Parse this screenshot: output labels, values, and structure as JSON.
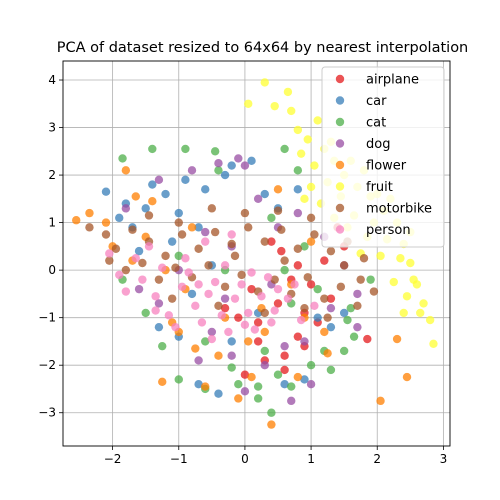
{
  "chart_data": {
    "type": "scatter",
    "title": "PCA of dataset resized to 64x64 by nearest interpolation",
    "xlabel": "",
    "ylabel": "",
    "xlim": [
      -2.75,
      3.1
    ],
    "ylim": [
      -3.7,
      4.4
    ],
    "xticks": [
      -2,
      -1,
      0,
      1,
      2,
      3
    ],
    "yticks": [
      -3,
      -2,
      -1,
      0,
      1,
      2,
      3,
      4
    ],
    "xtick_labels": [
      "−2",
      "−1",
      "0",
      "1",
      "2",
      "3"
    ],
    "ytick_labels": [
      "−3",
      "−2",
      "−1",
      "0",
      "1",
      "2",
      "3",
      "4"
    ],
    "grid": true,
    "legend_position": "top-right",
    "point_alpha": 0.75,
    "series": [
      {
        "name": "airplane",
        "color": "#e41a1c",
        "values": [
          [
            0.2,
            -1.1
          ],
          [
            0.5,
            -0.7
          ],
          [
            0.8,
            -1.4
          ],
          [
            0.3,
            -1.9
          ],
          [
            0.9,
            -0.9
          ],
          [
            1.2,
            0.2
          ],
          [
            1.5,
            0.5
          ],
          [
            0.0,
            -2.2
          ],
          [
            0.6,
            -1.8
          ],
          [
            1.85,
            -1.45
          ],
          [
            0.1,
            -0.4
          ],
          [
            0.7,
            -0.2
          ],
          [
            1.0,
            -0.3
          ],
          [
            0.4,
            0.6
          ],
          [
            1.3,
            -0.6
          ],
          [
            0.2,
            -1.5
          ],
          [
            -0.1,
            -1.0
          ],
          [
            0.9,
            -1.6
          ],
          [
            0.55,
            0.4
          ],
          [
            1.4,
            0.9
          ],
          [
            -0.3,
            -0.8
          ],
          [
            0.8,
            0.1
          ],
          [
            1.1,
            -1.1
          ],
          [
            0.6,
            -2.1
          ]
        ]
      },
      {
        "name": "car",
        "color": "#377eb8",
        "values": [
          [
            -2.1,
            1.65
          ],
          [
            -1.9,
            1.1
          ],
          [
            -1.5,
            1.3
          ],
          [
            -1.2,
            1.6
          ],
          [
            -0.9,
            1.9
          ],
          [
            -0.6,
            1.7
          ],
          [
            -0.2,
            2.2
          ],
          [
            0.1,
            2.3
          ],
          [
            -1.0,
            1.2
          ],
          [
            -0.7,
            0.9
          ],
          [
            -1.6,
            0.4
          ],
          [
            -1.3,
            -1.2
          ],
          [
            -1.0,
            -1.4
          ],
          [
            -0.7,
            -2.4
          ],
          [
            -0.4,
            -2.6
          ],
          [
            0.6,
            -2.4
          ],
          [
            0.9,
            -2.3
          ],
          [
            -0.2,
            -1.5
          ],
          [
            0.3,
            1.6
          ],
          [
            0.8,
            1.7
          ],
          [
            1.1,
            -1.0
          ],
          [
            1.5,
            -0.9
          ],
          [
            -1.8,
            1.4
          ],
          [
            -1.4,
            1.8
          ],
          [
            -0.5,
            0.1
          ],
          [
            -0.8,
            -0.5
          ],
          [
            0.2,
            -0.9
          ],
          [
            -1.1,
            0.6
          ],
          [
            0.5,
            1.3
          ],
          [
            1.3,
            -1.2
          ],
          [
            -0.3,
            2.0
          ],
          [
            -1.7,
            0.9
          ]
        ]
      },
      {
        "name": "cat",
        "color": "#4daf4a",
        "values": [
          [
            -1.85,
            2.35
          ],
          [
            -1.4,
            2.55
          ],
          [
            -0.9,
            2.55
          ],
          [
            -0.45,
            2.5
          ],
          [
            0.6,
            2.55
          ],
          [
            -0.6,
            -2.5
          ],
          [
            -0.1,
            -2.4
          ],
          [
            0.2,
            -2.45
          ],
          [
            0.5,
            -2.2
          ],
          [
            0.7,
            -2.45
          ],
          [
            -1.25,
            -1.6
          ],
          [
            -1.0,
            -2.3
          ],
          [
            0.4,
            -3.0
          ],
          [
            1.3,
            -2.1
          ],
          [
            1.5,
            -1.7
          ],
          [
            1.55,
            -1.05
          ],
          [
            1.65,
            -1.4
          ],
          [
            0.8,
            2.1
          ],
          [
            1.0,
            -2.0
          ],
          [
            0.3,
            -1.7
          ],
          [
            -0.6,
            -1.5
          ],
          [
            -0.3,
            0.0
          ],
          [
            0.6,
            0.0
          ],
          [
            1.1,
            -0.4
          ],
          [
            -1.0,
            0.3
          ],
          [
            0.4,
            1.1
          ],
          [
            0.9,
            0.5
          ],
          [
            -1.5,
            -0.9
          ],
          [
            1.6,
            -0.8
          ],
          [
            -0.2,
            -2.05
          ],
          [
            0.7,
            -0.7
          ],
          [
            1.9,
            -0.2
          ],
          [
            -1.85,
            -0.2
          ],
          [
            0.2,
            -2.7
          ],
          [
            -0.4,
            2.1
          ],
          [
            1.2,
            -1.7
          ]
        ]
      },
      {
        "name": "dog",
        "color": "#984ea3",
        "values": [
          [
            -0.4,
            2.25
          ],
          [
            -0.1,
            2.35
          ],
          [
            0.0,
            2.2
          ],
          [
            -0.8,
            2.1
          ],
          [
            -1.3,
            1.9
          ],
          [
            0.7,
            -2.75
          ],
          [
            0.3,
            -2.0
          ],
          [
            -0.2,
            -1.8
          ],
          [
            -0.5,
            -1.3
          ],
          [
            0.6,
            -1.6
          ],
          [
            0.9,
            -1.5
          ],
          [
            1.3,
            -0.8
          ],
          [
            1.7,
            -0.5
          ],
          [
            1.7,
            -1.2
          ],
          [
            1.2,
            0.7
          ],
          [
            0.8,
            1.2
          ],
          [
            -0.6,
            0.8
          ],
          [
            -1.0,
            0.0
          ],
          [
            -1.3,
            -0.7
          ],
          [
            -0.3,
            -0.6
          ],
          [
            0.4,
            -0.3
          ],
          [
            -0.2,
            0.5
          ],
          [
            0.2,
            1.5
          ],
          [
            -1.6,
            -0.4
          ],
          [
            0.0,
            -2.55
          ],
          [
            1.0,
            -2.4
          ],
          [
            -0.7,
            -1.9
          ],
          [
            0.5,
            0.9
          ],
          [
            -1.8,
            1.3
          ],
          [
            1.5,
            0.1
          ]
        ]
      },
      {
        "name": "flower",
        "color": "#ff7f00",
        "values": [
          [
            -2.55,
            1.05
          ],
          [
            -2.35,
            1.2
          ],
          [
            -1.8,
            2.1
          ],
          [
            -1.65,
            1.55
          ],
          [
            -1.4,
            1.45
          ],
          [
            -1.2,
            0.0
          ],
          [
            -1.0,
            -1.3
          ],
          [
            -0.75,
            -1.65
          ],
          [
            -0.6,
            -2.45
          ],
          [
            -0.1,
            -2.7
          ],
          [
            0.1,
            -2.25
          ],
          [
            0.4,
            -3.25
          ],
          [
            0.8,
            -2.25
          ],
          [
            -1.25,
            -2.35
          ],
          [
            2.05,
            -2.75
          ],
          [
            2.45,
            -2.25
          ],
          [
            2.3,
            -1.45
          ],
          [
            1.25,
            -1.75
          ],
          [
            1.2,
            -1.3
          ],
          [
            0.05,
            -1.5
          ],
          [
            0.25,
            -0.8
          ],
          [
            -0.3,
            -1.0
          ],
          [
            -0.8,
            0.9
          ],
          [
            -2.0,
            0.5
          ],
          [
            -1.5,
            0.7
          ],
          [
            0.7,
            -0.3
          ],
          [
            1.0,
            0.6
          ],
          [
            -0.9,
            -0.4
          ],
          [
            0.5,
            1.7
          ],
          [
            -2.1,
            1.0
          ],
          [
            -0.4,
            -1.8
          ],
          [
            0.9,
            -1.0
          ],
          [
            -1.7,
            0.2
          ],
          [
            -1.1,
            -1.1
          ],
          [
            0.3,
            -1.3
          ]
        ]
      },
      {
        "name": "fruit",
        "color": "#ffff33",
        "values": [
          [
            0.05,
            3.5
          ],
          [
            0.3,
            3.95
          ],
          [
            0.45,
            3.45
          ],
          [
            0.65,
            3.75
          ],
          [
            0.7,
            3.35
          ],
          [
            0.8,
            2.95
          ],
          [
            0.95,
            2.75
          ],
          [
            1.1,
            3.15
          ],
          [
            1.2,
            2.55
          ],
          [
            1.35,
            2.3
          ],
          [
            1.5,
            2.0
          ],
          [
            1.7,
            1.75
          ],
          [
            1.9,
            1.55
          ],
          [
            2.1,
            1.25
          ],
          [
            2.3,
            1.0
          ],
          [
            2.4,
            0.55
          ],
          [
            2.5,
            0.15
          ],
          [
            2.6,
            -0.3
          ],
          [
            2.7,
            -0.7
          ],
          [
            2.8,
            -1.05
          ],
          [
            2.85,
            -1.55
          ],
          [
            2.65,
            -0.9
          ],
          [
            2.45,
            -0.55
          ],
          [
            2.25,
            -0.25
          ],
          [
            2.05,
            0.3
          ],
          [
            1.85,
            0.7
          ],
          [
            1.65,
            1.15
          ],
          [
            1.45,
            1.55
          ],
          [
            1.25,
            1.85
          ],
          [
            1.05,
            2.2
          ],
          [
            0.85,
            2.45
          ],
          [
            1.15,
            1.4
          ],
          [
            1.55,
            0.9
          ],
          [
            1.95,
            1.0
          ],
          [
            2.15,
            0.65
          ],
          [
            2.35,
            0.25
          ],
          [
            1.75,
            0.35
          ],
          [
            1.35,
            1.1
          ],
          [
            1.0,
            1.75
          ],
          [
            0.9,
            1.5
          ],
          [
            2.5,
            0.8
          ],
          [
            2.0,
            1.6
          ],
          [
            1.6,
            2.3
          ],
          [
            1.8,
            2.1
          ],
          [
            2.2,
            1.5
          ],
          [
            1.3,
            2.7
          ],
          [
            2.55,
            -0.2
          ],
          [
            2.4,
            -0.9
          ]
        ]
      },
      {
        "name": "motorbike",
        "color": "#a65628",
        "values": [
          [
            -2.35,
            0.9
          ],
          [
            -2.1,
            0.75
          ],
          [
            -1.95,
            0.45
          ],
          [
            -1.7,
            0.85
          ],
          [
            -1.45,
            0.6
          ],
          [
            -1.2,
            0.3
          ],
          [
            -0.95,
            0.75
          ],
          [
            -0.7,
            0.45
          ],
          [
            -0.45,
            0.8
          ],
          [
            -0.2,
            0.55
          ],
          [
            0.05,
            0.9
          ],
          [
            0.3,
            0.6
          ],
          [
            0.55,
            0.85
          ],
          [
            0.8,
            0.45
          ],
          [
            1.05,
            0.75
          ],
          [
            1.3,
            0.4
          ],
          [
            1.55,
            0.6
          ],
          [
            1.8,
            0.25
          ],
          [
            1.95,
            -0.45
          ],
          [
            1.7,
            -0.75
          ],
          [
            1.45,
            -0.35
          ],
          [
            1.2,
            -0.6
          ],
          [
            0.95,
            -0.15
          ],
          [
            0.7,
            -0.5
          ],
          [
            0.45,
            -0.2
          ],
          [
            0.2,
            -0.45
          ],
          [
            -0.05,
            -0.1
          ],
          [
            -0.3,
            -0.35
          ],
          [
            -0.55,
            0.1
          ],
          [
            -0.8,
            -0.15
          ],
          [
            -1.05,
            0.05
          ],
          [
            -1.3,
            -0.2
          ],
          [
            -1.55,
            0.15
          ],
          [
            -1.8,
            0.0
          ],
          [
            -2.05,
            0.2
          ],
          [
            -1.45,
            1.15
          ],
          [
            -1.0,
            1.0
          ],
          [
            -0.5,
            1.3
          ],
          [
            0.0,
            1.2
          ],
          [
            0.5,
            1.25
          ],
          [
            1.0,
            1.1
          ],
          [
            1.5,
            0.1
          ],
          [
            1.75,
            -0.2
          ],
          [
            0.3,
            -0.9
          ],
          [
            -0.4,
            -0.75
          ],
          [
            -1.1,
            -0.6
          ],
          [
            0.9,
            -0.8
          ],
          [
            1.25,
            -1.0
          ],
          [
            -0.15,
            0.3
          ],
          [
            0.6,
            0.2
          ]
        ]
      },
      {
        "name": "person",
        "color": "#f781bf",
        "values": [
          [
            -2.05,
            0.35
          ],
          [
            -1.8,
            -0.45
          ],
          [
            -1.55,
            -0.2
          ],
          [
            -1.35,
            -0.55
          ],
          [
            -1.15,
            -0.95
          ],
          [
            -0.95,
            -0.35
          ],
          [
            -0.75,
            -0.75
          ],
          [
            -0.55,
            -0.5
          ],
          [
            -0.35,
            -0.95
          ],
          [
            -0.15,
            -0.6
          ],
          [
            0.05,
            -0.9
          ],
          [
            0.25,
            -0.55
          ],
          [
            0.45,
            -0.85
          ],
          [
            0.65,
            -0.6
          ],
          [
            0.85,
            -1.05
          ],
          [
            1.05,
            -0.75
          ],
          [
            -0.65,
            -1.1
          ],
          [
            -0.25,
            -1.3
          ],
          [
            0.15,
            -1.25
          ],
          [
            -1.05,
            -1.2
          ],
          [
            -0.85,
            -0.05
          ],
          [
            -0.45,
            -0.25
          ],
          [
            -0.05,
            -0.3
          ],
          [
            0.35,
            -0.15
          ],
          [
            0.75,
            -0.3
          ],
          [
            -1.25,
            0.05
          ],
          [
            -1.65,
            0.25
          ],
          [
            -1.45,
            0.5
          ],
          [
            -0.9,
            0.25
          ],
          [
            -0.3,
            0.1
          ],
          [
            0.1,
            -0.05
          ],
          [
            0.5,
            -0.4
          ],
          [
            -0.7,
            -0.3
          ],
          [
            -0.5,
            -1.45
          ],
          [
            0.0,
            -1.15
          ],
          [
            0.4,
            -1.1
          ],
          [
            -1.35,
            -0.85
          ],
          [
            -1.9,
            -0.1
          ],
          [
            -0.2,
            0.75
          ],
          [
            -0.6,
            0.6
          ]
        ]
      }
    ]
  }
}
